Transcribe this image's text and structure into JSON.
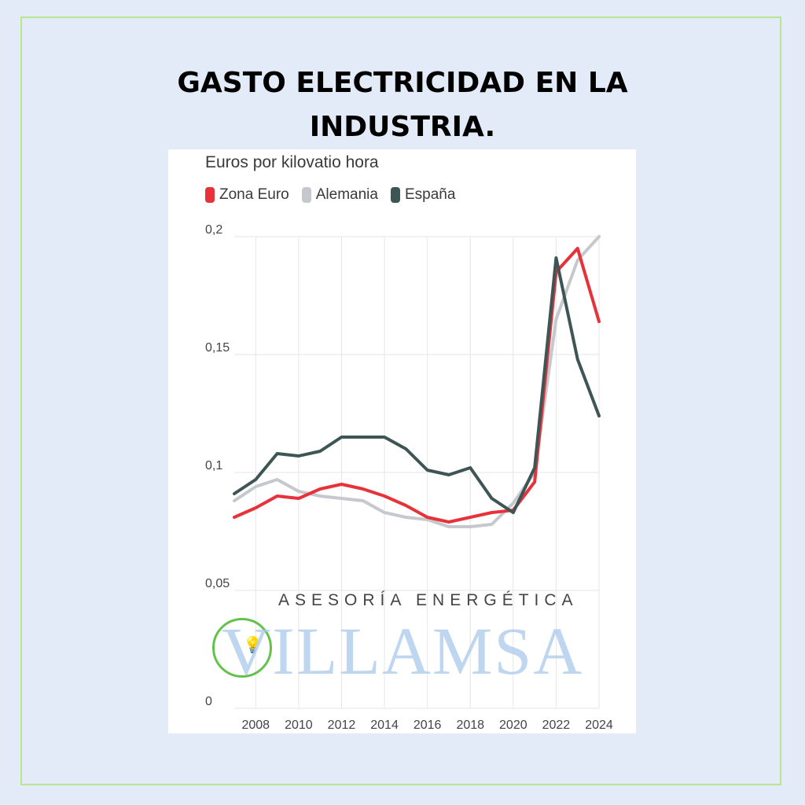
{
  "header": {
    "title_line1": "GASTO ELECTRICIDAD EN LA",
    "title_line2": "INDUSTRIA."
  },
  "watermark": {
    "tagline": "ASESORÍA ENERGÉTICA",
    "brand": "VILLAMSA",
    "bulb_icon": "lightbulb-icon"
  },
  "colors": {
    "zona_euro": "#e8323a",
    "alemania": "#c5c8cc",
    "espana": "#3e5555",
    "background": "#e3ebf8",
    "frame": "#b9e58e"
  },
  "chart_data": {
    "type": "line",
    "title": "Euros por kilovatio hora",
    "x": [
      2007,
      2008,
      2009,
      2010,
      2011,
      2012,
      2013,
      2014,
      2015,
      2016,
      2017,
      2018,
      2019,
      2020,
      2021,
      2022,
      2023,
      2024
    ],
    "xticks": [
      "2008",
      "2010",
      "2012",
      "2014",
      "2016",
      "2018",
      "2020",
      "2022",
      "2024"
    ],
    "yticks": [
      "0",
      "0,05",
      "0,1",
      "0,15",
      "0,2"
    ],
    "ylim": [
      0,
      0.2
    ],
    "xlim": [
      2007,
      2024
    ],
    "grid": true,
    "legend_position": "top-left",
    "series": [
      {
        "name": "Zona Euro",
        "key": "zona_euro",
        "values": [
          0.081,
          0.085,
          0.09,
          0.089,
          0.093,
          0.095,
          0.093,
          0.09,
          0.086,
          0.081,
          0.079,
          0.081,
          0.083,
          0.084,
          0.096,
          0.185,
          0.195,
          0.164
        ]
      },
      {
        "name": "Alemania",
        "key": "alemania",
        "values": [
          0.088,
          0.094,
          0.097,
          0.092,
          0.09,
          0.089,
          0.088,
          0.083,
          0.081,
          0.08,
          0.077,
          0.077,
          0.078,
          0.087,
          0.1,
          0.165,
          0.19,
          0.2
        ]
      },
      {
        "name": "España",
        "key": "espana",
        "values": [
          0.091,
          0.097,
          0.108,
          0.107,
          0.109,
          0.115,
          0.115,
          0.115,
          0.11,
          0.101,
          0.099,
          0.102,
          0.089,
          0.083,
          0.102,
          0.191,
          0.148,
          0.124
        ]
      }
    ]
  }
}
